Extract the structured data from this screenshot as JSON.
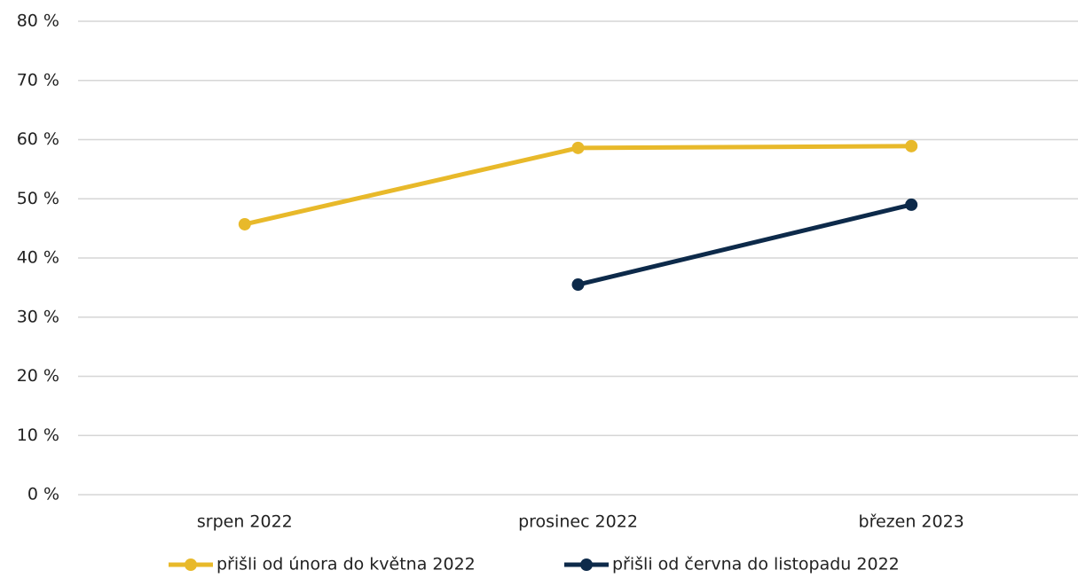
{
  "chart_data": {
    "type": "line",
    "categories": [
      "srpen 2022",
      "prosinec 2022",
      "březen 2023"
    ],
    "series": [
      {
        "name": "přišli od února do května 2022",
        "color": "#e8b92a",
        "values": [
          45.7,
          58.6,
          58.9
        ]
      },
      {
        "name": "přišli od června do listopadu 2022",
        "color": "#0d2a4a",
        "values": [
          null,
          35.5,
          49.0
        ]
      }
    ],
    "ylim": [
      0,
      80
    ],
    "yticks": [
      {
        "value": 0,
        "label": "0 %"
      },
      {
        "value": 10,
        "label": "10 %"
      },
      {
        "value": 20,
        "label": "20 %"
      },
      {
        "value": 30,
        "label": "30 %"
      },
      {
        "value": 40,
        "label": "40 %"
      },
      {
        "value": 50,
        "label": "50 %"
      },
      {
        "value": 60,
        "label": "60 %"
      },
      {
        "value": 70,
        "label": "70 %"
      },
      {
        "value": 80,
        "label": "80 %"
      }
    ],
    "grid": true,
    "legend": "bottom"
  }
}
